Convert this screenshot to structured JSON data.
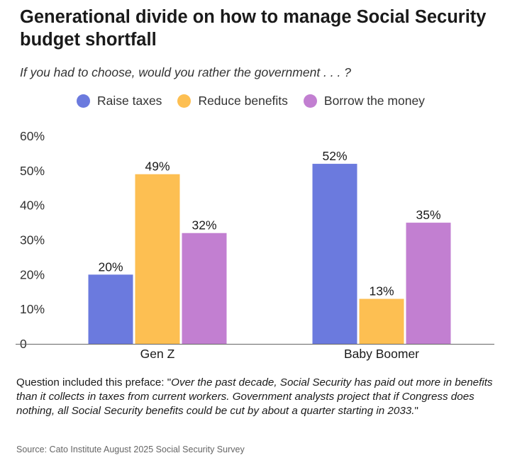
{
  "title": "Generational divide on how to manage Social Security budget shortfall",
  "subtitle": "If you had to choose, would you rather the government . . . ?",
  "note": {
    "prefix": "Question included this preface: \"",
    "quote": "Over the past decade, Social Security has paid out more in benefits than it collects in taxes from current workers. Government analysts project that if Congress does nothing, all Social Security benefits could be cut by about a quarter starting in 2033.",
    "suffix": "\""
  },
  "source": "Source: Cato Institute August 2025 Social Security Survey",
  "colors": {
    "raise_taxes": "#6b7ade",
    "reduce_benefits": "#fdbf52",
    "borrow_money": "#c27fd1",
    "axis": "#666666",
    "text": "#1a1a1a"
  },
  "chart_data": {
    "type": "bar",
    "title": "Generational divide on how to manage Social Security budget shortfall",
    "xlabel": "",
    "ylabel": "",
    "categories": [
      "Gen Z",
      "Baby Boomer"
    ],
    "series": [
      {
        "name": "Raise taxes",
        "values": [
          20,
          52
        ],
        "labels": [
          "20%",
          "52%"
        ],
        "color": "#6b7ade"
      },
      {
        "name": "Reduce benefits",
        "values": [
          49,
          13
        ],
        "labels": [
          "49%",
          "13%"
        ],
        "color": "#fdbf52"
      },
      {
        "name": "Borrow the money",
        "values": [
          32,
          35
        ],
        "labels": [
          "32%",
          "35%"
        ],
        "color": "#c27fd1"
      }
    ],
    "ylim": [
      0,
      60
    ],
    "yticks": [
      0,
      10,
      20,
      30,
      40,
      50,
      60
    ],
    "ytick_labels": [
      "0",
      "10%",
      "20%",
      "30%",
      "40%",
      "50%",
      "60%"
    ],
    "grid": false,
    "legend": "top"
  }
}
